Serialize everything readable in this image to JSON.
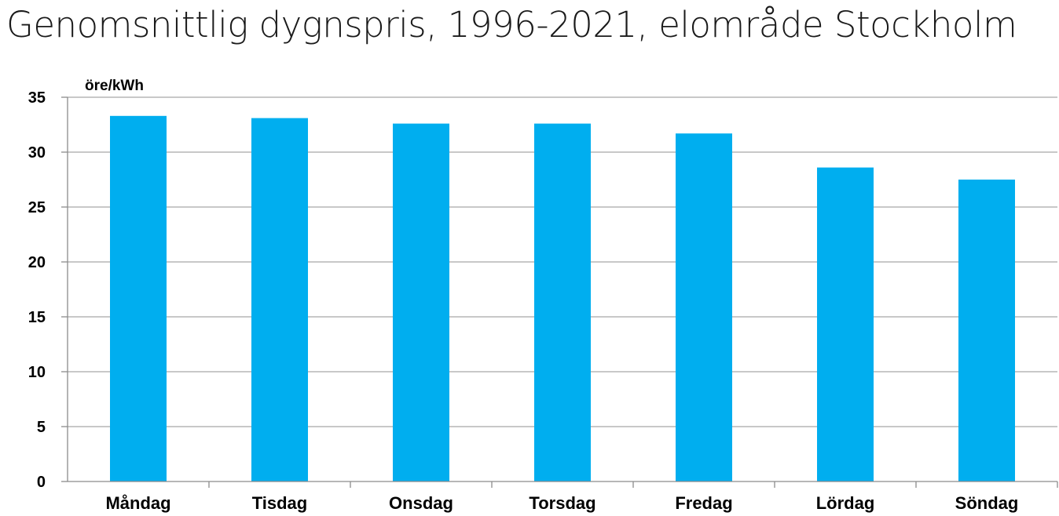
{
  "chart_data": {
    "type": "bar",
    "title": "Genomsnittlig dygnspris, 1996-2021, elområde Stockholm",
    "ylabel": "öre/kWh",
    "xlabel": "",
    "categories": [
      "Måndag",
      "Tisdag",
      "Onsdag",
      "Torsdag",
      "Fredag",
      "Lördag",
      "Söndag"
    ],
    "values": [
      33.3,
      33.1,
      32.6,
      32.6,
      31.7,
      28.6,
      27.5
    ],
    "ylim": [
      0,
      35
    ],
    "yticks": [
      0,
      5,
      10,
      15,
      20,
      25,
      30,
      35
    ],
    "grid": true,
    "legend": "none",
    "bar_color": "#00AEEF"
  }
}
